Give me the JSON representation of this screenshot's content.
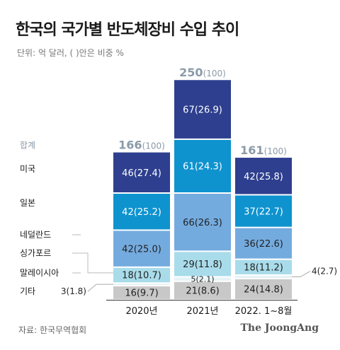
{
  "title": "한국의 국가별 반도체장비 수입 추이",
  "unit_note": "단위: 억 달러, ( )안은 비중 %",
  "source": "자료: 한국무역협회",
  "brand": "The JoongAng",
  "total_label": "합계",
  "colors": {
    "미국": "#2e3f8f",
    "일본": "#0e93cf",
    "네덜란드": "#74abdf",
    "싱가포르": "#a9dcea",
    "말레이시아": "#e6f2f6",
    "기타": "#c8c8c8",
    "total_text": "#8a9aa8",
    "label_text": "#222222"
  },
  "chart_data": {
    "type": "bar",
    "stacked": true,
    "categories": [
      "2020년",
      "2021년",
      "2022. 1~8월"
    ],
    "totals": [
      {
        "value": 166,
        "share": 100
      },
      {
        "value": 250,
        "share": 100
      },
      {
        "value": 161,
        "share": 100
      }
    ],
    "series": [
      {
        "name": "기타",
        "values": [
          16,
          21,
          24
        ],
        "shares": [
          9.7,
          8.6,
          14.8
        ]
      },
      {
        "name": "말레이시아",
        "values": [
          3,
          5,
          4
        ],
        "shares": [
          1.8,
          2.1,
          2.7
        ]
      },
      {
        "name": "싱가포르",
        "values": [
          18,
          29,
          18
        ],
        "shares": [
          10.7,
          11.8,
          11.2
        ]
      },
      {
        "name": "네덜란드",
        "values": [
          42,
          66,
          36
        ],
        "shares": [
          25.0,
          26.3,
          22.6
        ]
      },
      {
        "name": "일본",
        "values": [
          42,
          61,
          37
        ],
        "shares": [
          25.2,
          24.3,
          22.7
        ]
      },
      {
        "name": "미국",
        "values": [
          46,
          67,
          42
        ],
        "shares": [
          27.4,
          26.9,
          25.8
        ]
      }
    ],
    "ylim": [
      0,
      250
    ],
    "grid": false,
    "legend": "left"
  }
}
